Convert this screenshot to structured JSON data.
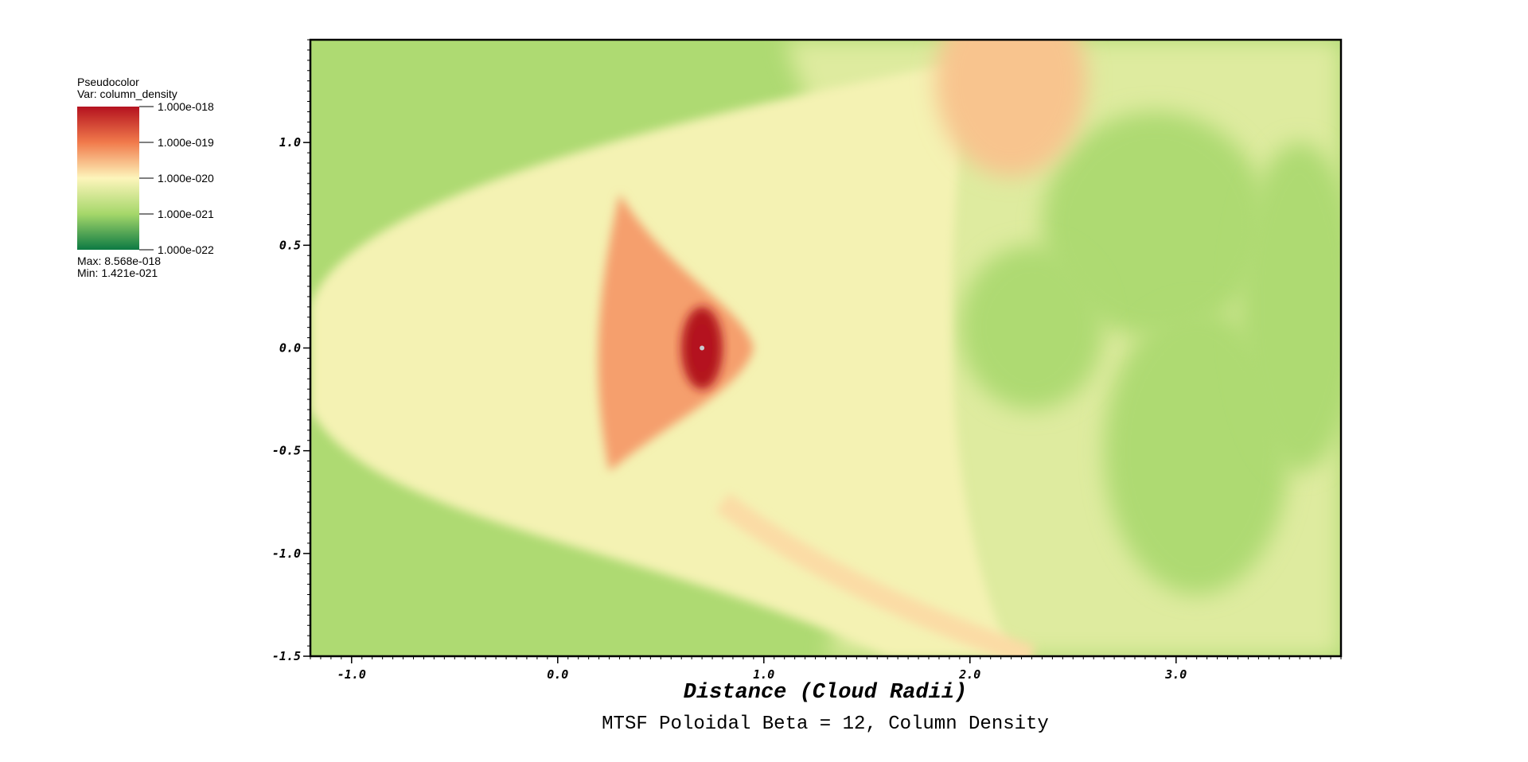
{
  "chart_data": {
    "type": "heatmap",
    "title": "MTSF Poloidal Beta = 12, Column Density",
    "xlabel": "Distance (Cloud Radii)",
    "ylabel": "",
    "xlim": [
      -1.2,
      3.8
    ],
    "ylim": [
      -1.5,
      1.5
    ],
    "x_ticks": [
      "-1.0",
      "0.0",
      "1.0",
      "2.0",
      "3.0"
    ],
    "x_tick_values": [
      -1.0,
      0.0,
      1.0,
      2.0,
      3.0
    ],
    "y_ticks": [
      "1.0",
      "0.5",
      "0.0",
      "-0.5",
      "-1.0",
      "-1.5"
    ],
    "y_tick_values": [
      1.0,
      0.5,
      0.0,
      -0.5,
      -1.0,
      -1.5
    ],
    "field": {
      "background_log10": -20.9,
      "features": [
        {
          "kind": "core",
          "x": 0.7,
          "y": 0.0,
          "log10_peak": -17.1
        },
        {
          "kind": "envelope",
          "x": 0.5,
          "y": -0.05,
          "log10_peak": -19.3
        },
        {
          "kind": "bow-shell",
          "x": -0.6,
          "y": 0.0,
          "log10_peak": -20.1
        },
        {
          "kind": "upper-filament",
          "x": 2.2,
          "y": 1.3,
          "log10_peak": -19.6
        },
        {
          "kind": "lower-filament",
          "x": 1.6,
          "y": -1.3,
          "log10_peak": -19.8
        },
        {
          "kind": "turbulent-wake",
          "x": 2.9,
          "y": 0.0,
          "log10_peak": -20.7
        }
      ]
    },
    "legend": {
      "placement": "top-left",
      "plot_type": "Pseudocolor",
      "variable": "Var: column_density",
      "max_label": "Max:  8.568e-018",
      "min_label": "Min:  1.421e-021",
      "scale": "log",
      "range_log10": [
        -22,
        -18
      ],
      "ticks": [
        "1.000e-018",
        "1.000e-019",
        "1.000e-020",
        "1.000e-021",
        "1.000e-022"
      ],
      "colors": [
        "#b4121f",
        "#f17a4b",
        "#fdf5bb",
        "#a5d76a",
        "#0c7a43"
      ]
    },
    "grid": false
  }
}
